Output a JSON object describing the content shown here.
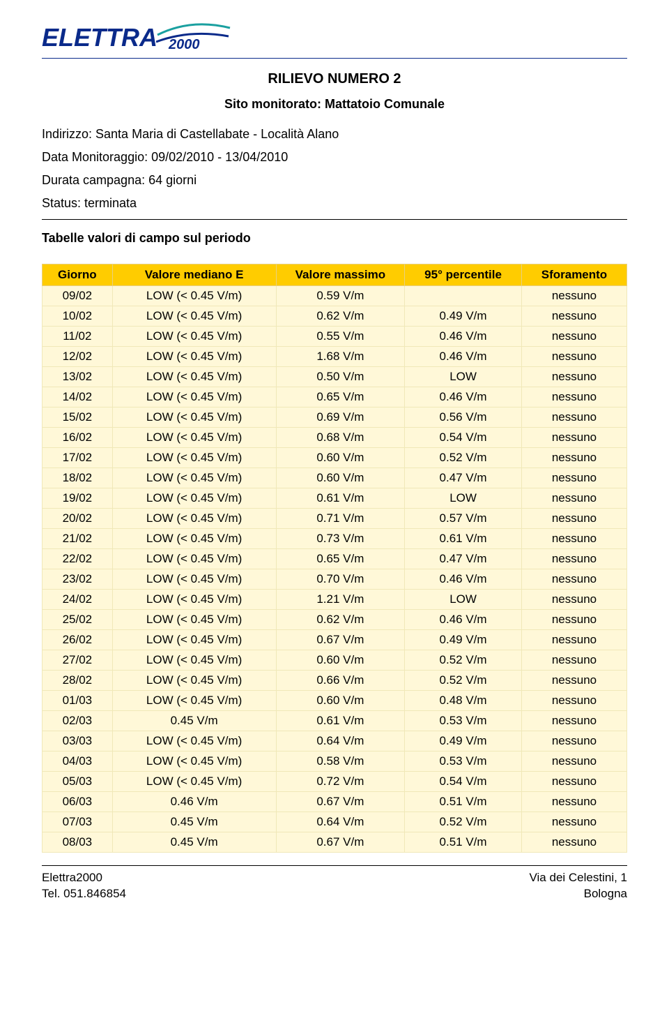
{
  "logo": {
    "text": "ELETTRA",
    "year": "2000",
    "brand_color": "#0a2a8a",
    "accent_color": "#1aa0a0"
  },
  "header": {
    "title": "RILIEVO NUMERO 2",
    "subtitle": "Sito monitorato: Mattatoio Comunale"
  },
  "info": {
    "address_label": "Indirizzo: ",
    "address_value": "Santa Maria di Castellabate - Località Alano",
    "date_label": "Data Monitoraggio",
    "date_value": ": 09/02/2010 - 13/04/2010",
    "duration_label": "Durata campagna: ",
    "duration_value": "64 giorni",
    "status_label": "Status: ",
    "status_value": "terminata"
  },
  "section_title": "Tabelle valori di campo sul periodo",
  "table": {
    "header_bg": "#ffcc00",
    "row_bg": "#fff8d8",
    "columns": [
      "Giorno",
      "Valore mediano E",
      "Valore massimo",
      "95° percentile",
      "Sforamento"
    ],
    "rows": [
      [
        "09/02",
        "LOW (< 0.45 V/m)",
        "0.59 V/m",
        "",
        "nessuno"
      ],
      [
        "10/02",
        "LOW (< 0.45 V/m)",
        "0.62 V/m",
        "0.49 V/m",
        "nessuno"
      ],
      [
        "11/02",
        "LOW (< 0.45 V/m)",
        "0.55 V/m",
        "0.46 V/m",
        "nessuno"
      ],
      [
        "12/02",
        "LOW (< 0.45 V/m)",
        "1.68 V/m",
        "0.46 V/m",
        "nessuno"
      ],
      [
        "13/02",
        "LOW (< 0.45 V/m)",
        "0.50 V/m",
        "LOW",
        "nessuno"
      ],
      [
        "14/02",
        "LOW (< 0.45 V/m)",
        "0.65 V/m",
        "0.46 V/m",
        "nessuno"
      ],
      [
        "15/02",
        "LOW (< 0.45 V/m)",
        "0.69 V/m",
        "0.56 V/m",
        "nessuno"
      ],
      [
        "16/02",
        "LOW (< 0.45 V/m)",
        "0.68 V/m",
        "0.54 V/m",
        "nessuno"
      ],
      [
        "17/02",
        "LOW (< 0.45 V/m)",
        "0.60 V/m",
        "0.52 V/m",
        "nessuno"
      ],
      [
        "18/02",
        "LOW (< 0.45 V/m)",
        "0.60 V/m",
        "0.47 V/m",
        "nessuno"
      ],
      [
        "19/02",
        "LOW (< 0.45 V/m)",
        "0.61 V/m",
        "LOW",
        "nessuno"
      ],
      [
        "20/02",
        "LOW (< 0.45 V/m)",
        "0.71 V/m",
        "0.57 V/m",
        "nessuno"
      ],
      [
        "21/02",
        "LOW (< 0.45 V/m)",
        "0.73 V/m",
        "0.61 V/m",
        "nessuno"
      ],
      [
        "22/02",
        "LOW (< 0.45 V/m)",
        "0.65 V/m",
        "0.47 V/m",
        "nessuno"
      ],
      [
        "23/02",
        "LOW (< 0.45 V/m)",
        "0.70 V/m",
        "0.46 V/m",
        "nessuno"
      ],
      [
        "24/02",
        "LOW (< 0.45 V/m)",
        "1.21 V/m",
        "LOW",
        "nessuno"
      ],
      [
        "25/02",
        "LOW (< 0.45 V/m)",
        "0.62 V/m",
        "0.46 V/m",
        "nessuno"
      ],
      [
        "26/02",
        "LOW (< 0.45 V/m)",
        "0.67 V/m",
        "0.49 V/m",
        "nessuno"
      ],
      [
        "27/02",
        "LOW (< 0.45 V/m)",
        "0.60 V/m",
        "0.52 V/m",
        "nessuno"
      ],
      [
        "28/02",
        "LOW (< 0.45 V/m)",
        "0.66 V/m",
        "0.52 V/m",
        "nessuno"
      ],
      [
        "01/03",
        "LOW (< 0.45 V/m)",
        "0.60 V/m",
        "0.48 V/m",
        "nessuno"
      ],
      [
        "02/03",
        "0.45 V/m",
        "0.61 V/m",
        "0.53 V/m",
        "nessuno"
      ],
      [
        "03/03",
        "LOW (< 0.45 V/m)",
        "0.64 V/m",
        "0.49 V/m",
        "nessuno"
      ],
      [
        "04/03",
        "LOW (< 0.45 V/m)",
        "0.58 V/m",
        "0.53 V/m",
        "nessuno"
      ],
      [
        "05/03",
        "LOW (< 0.45 V/m)",
        "0.72 V/m",
        "0.54 V/m",
        "nessuno"
      ],
      [
        "06/03",
        "0.46 V/m",
        "0.67 V/m",
        "0.51 V/m",
        "nessuno"
      ],
      [
        "07/03",
        "0.45 V/m",
        "0.64 V/m",
        "0.52 V/m",
        "nessuno"
      ],
      [
        "08/03",
        "0.45 V/m",
        "0.67 V/m",
        "0.51 V/m",
        "nessuno"
      ]
    ]
  },
  "footer": {
    "left_line1": "Elettra2000",
    "left_line2": "Tel. 051.846854",
    "right_line1": "Via dei Celestini, 1",
    "right_line2": "Bologna"
  }
}
